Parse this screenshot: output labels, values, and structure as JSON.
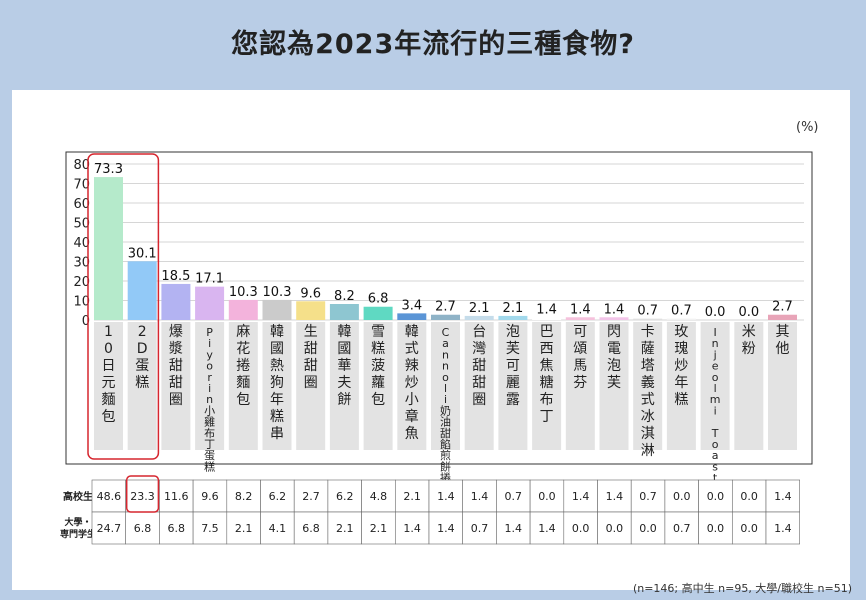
{
  "title": "您認為2023年流行的三種食物?",
  "unit": "(%)",
  "note": "(n=146; 高中生 n=95, 大學/職校生 n=51)",
  "chart_data": {
    "type": "bar",
    "ylim": [
      0,
      80
    ],
    "yticks": [
      0,
      10,
      20,
      30,
      40,
      50,
      60,
      70,
      80
    ],
    "categories": [
      "10日元麵包",
      "2D蛋糕",
      "爆漿甜甜圈",
      "Piyorin小雞布丁蛋糕",
      "麻花捲麵包",
      "韓國熱狗年糕串",
      "生甜甜圈",
      "韓國華夫餅",
      "雪糕菠蘿包",
      "韓式辣炒小章魚",
      "Cannoli奶油甜餡煎餅捲",
      "台灣甜甜圈",
      "泡芙可麗露",
      "巴西焦糖布丁",
      "可頌馬芬",
      "閃電泡芙",
      "卡薩塔義式冰淇淋",
      "玫瑰炒年糕",
      "Injeolmi Toast年糕吐司",
      "米粉",
      "其他"
    ],
    "values": [
      73.3,
      30.1,
      18.5,
      17.1,
      10.3,
      10.3,
      9.6,
      8.2,
      6.8,
      3.4,
      2.7,
      2.1,
      2.1,
      1.4,
      1.4,
      1.4,
      0.7,
      0.7,
      0.0,
      0.0,
      2.7
    ],
    "colors": [
      "#b5eacb",
      "#92c9f7",
      "#b3b3f2",
      "#d9b5f0",
      "#f3b3dc",
      "#cbcbcb",
      "#f5e08a",
      "#8ec6d1",
      "#5fd9c2",
      "#5b95d6",
      "#8fb3c7",
      "#c5dcea",
      "#a2d9ec",
      "#ffffff",
      "#f5c2dc",
      "#f2c4e8",
      "#e0e0e0",
      "#f2f2f2",
      "#ffffff",
      "#ffffff",
      "#e8a4b8"
    ],
    "table": {
      "rows": [
        {
          "label": "高校生",
          "values": [
            "48.6",
            "23.3",
            "11.6",
            "9.6",
            "8.2",
            "6.2",
            "2.7",
            "6.2",
            "4.8",
            "2.1",
            "1.4",
            "1.4",
            "0.7",
            "0.0",
            "1.4",
            "1.4",
            "0.7",
            "0.0",
            "0.0",
            "0.0",
            "1.4"
          ]
        },
        {
          "label": "大學・専門学生",
          "values": [
            "24.7",
            "6.8",
            "6.8",
            "7.5",
            "2.1",
            "4.1",
            "6.8",
            "2.1",
            "2.1",
            "1.4",
            "1.4",
            "0.7",
            "1.4",
            "1.4",
            "0.0",
            "0.0",
            "0.0",
            "0.7",
            "0.0",
            "0.0",
            "1.4"
          ]
        }
      ]
    }
  }
}
